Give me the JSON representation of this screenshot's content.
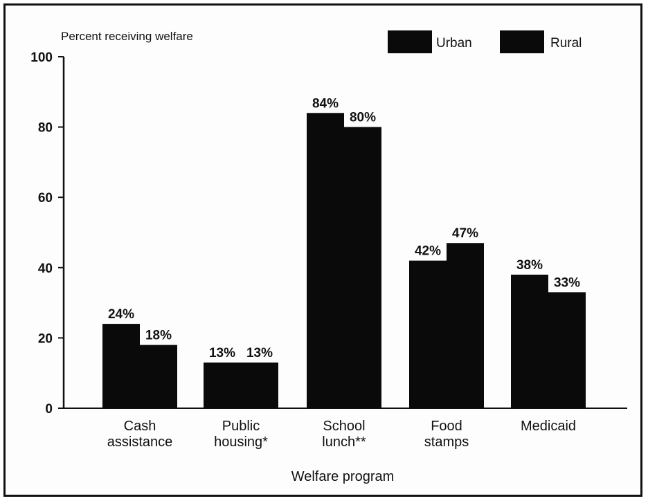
{
  "chart_data": {
    "type": "bar",
    "ylabel": "Percent receiving welfare",
    "xlabel": "Welfare program",
    "ylim": [
      0,
      100
    ],
    "yticks": [
      "0",
      "20",
      "40",
      "60",
      "80",
      "100"
    ],
    "grid": false,
    "legend_position": "top-right",
    "categories": [
      [
        "Cash",
        "assistance"
      ],
      [
        "Public",
        "housing*"
      ],
      [
        "School",
        "lunch**"
      ],
      [
        "Food",
        "stamps"
      ],
      [
        "Medicaid"
      ]
    ],
    "series": [
      {
        "name": "Urban",
        "values": [
          24,
          13,
          84,
          42,
          38
        ],
        "labels": [
          "24%",
          "13%",
          "84%",
          "42%",
          "38%"
        ],
        "color": "#0a0a0a"
      },
      {
        "name": "Rural",
        "values": [
          18,
          13,
          80,
          47,
          33
        ],
        "labels": [
          "18%",
          "13%",
          "80%",
          "47%",
          "33%"
        ],
        "color": "#0a0a0a"
      }
    ]
  }
}
